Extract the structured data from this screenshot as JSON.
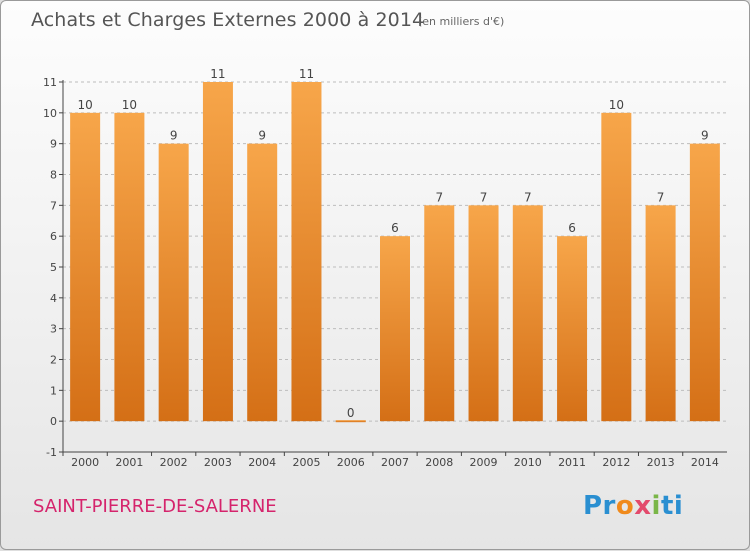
{
  "header": {
    "title": "Achats et Charges Externes 2000 à 2014",
    "subtitle": "(en milliers d'€)"
  },
  "footer": {
    "city": "SAINT-PIERRE-DE-SALERNE",
    "brand_parts": [
      "Pr",
      "o",
      "x",
      "i",
      "ti"
    ]
  },
  "colors": {
    "bar_top": "#f7a64a",
    "bar_bottom": "#d46f16",
    "axis": "#444444",
    "grid": "#bdbdbd",
    "label": "#444444"
  },
  "chart_data": {
    "type": "bar",
    "title": "Achats et Charges Externes 2000 à 2014",
    "subtitle": "(en milliers d'€)",
    "categories": [
      "2000",
      "2001",
      "2002",
      "2003",
      "2004",
      "2005",
      "2006",
      "2007",
      "2008",
      "2009",
      "2010",
      "2011",
      "2012",
      "2013",
      "2014"
    ],
    "values": [
      10,
      10,
      9,
      11,
      9,
      11,
      0,
      6,
      7,
      7,
      7,
      6,
      10,
      7,
      9
    ],
    "ylim": [
      -1,
      11
    ],
    "yticks": [
      "-1",
      "0",
      "1",
      "2",
      "3",
      "4",
      "5",
      "6",
      "7",
      "8",
      "9",
      "10",
      "11"
    ],
    "grid": true,
    "grid_style": "dashed-horizontal"
  }
}
